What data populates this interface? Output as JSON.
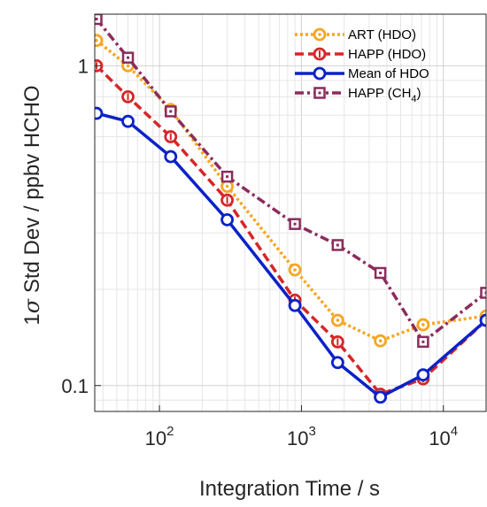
{
  "chart_data": {
    "type": "line",
    "xscale": "log",
    "yscale": "log",
    "xlim": [
      35,
      20000
    ],
    "ylim": [
      0.083,
      1.45
    ],
    "xlabel": "Integration Time / s",
    "ylabel_prefix": "1",
    "ylabel_sigma": "σ",
    "ylabel_rest": " Std Dev / ppbv HCHO",
    "xticks": [
      {
        "value": 100,
        "base": "10",
        "exp": "2"
      },
      {
        "value": 1000,
        "base": "10",
        "exp": "3"
      },
      {
        "value": 10000,
        "base": "10",
        "exp": "4"
      }
    ],
    "yticks": [
      {
        "value": 0.1,
        "label": "0.1"
      },
      {
        "value": 1,
        "label": "1"
      }
    ],
    "grid": true,
    "legend_position": "top-right",
    "x": [
      36,
      60,
      120,
      300,
      900,
      1800,
      3600,
      7200,
      20000
    ],
    "series": [
      {
        "name": "ART (HDO)",
        "color": "#F5A623",
        "dash": "3,3",
        "marker": "circle-dot",
        "values": [
          1.2,
          1.0,
          0.73,
          0.42,
          0.23,
          0.16,
          0.138,
          0.155,
          0.165
        ]
      },
      {
        "name": "HAPP (HDO)",
        "color": "#D62728",
        "dash": "10,5",
        "marker": "circle-tick",
        "values": [
          1.0,
          0.8,
          0.6,
          0.38,
          0.185,
          0.137,
          0.094,
          0.105,
          0.16
        ]
      },
      {
        "name": "Mean of HDO",
        "color": "#0A22C8",
        "dash": "",
        "marker": "circle",
        "values": [
          0.71,
          0.67,
          0.52,
          0.33,
          0.178,
          0.118,
          0.092,
          0.108,
          0.16
        ]
      },
      {
        "name": "HAPP (CH",
        "name_sub": "4",
        "name_end": ")",
        "color": "#8B2C5C",
        "dash": "10,4,3,4",
        "marker": "square-dot",
        "values": [
          1.4,
          1.06,
          0.72,
          0.45,
          0.32,
          0.275,
          0.225,
          0.137,
          0.195
        ]
      }
    ]
  }
}
